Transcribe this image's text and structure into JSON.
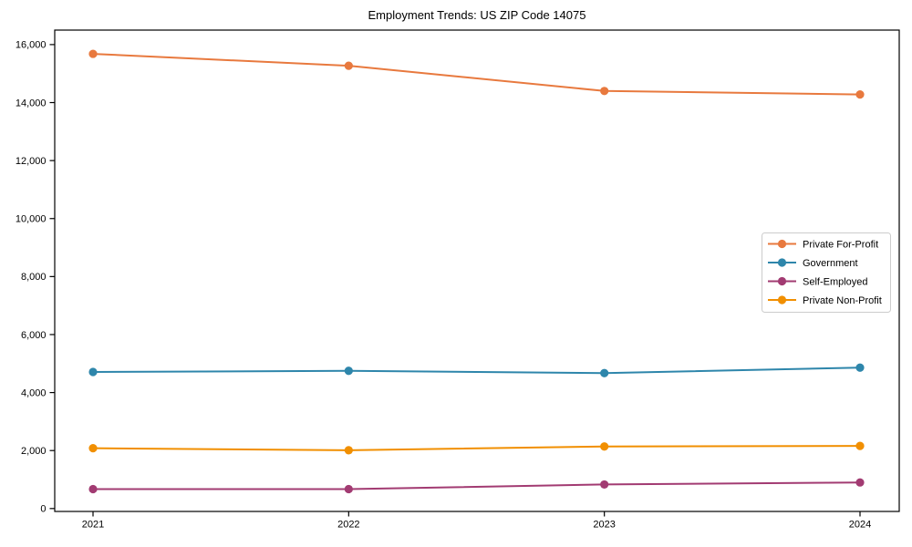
{
  "figure": {
    "title": "Employment Trends: US ZIP Code 14075",
    "background_color": "#ffffff",
    "spine_color": "#000000",
    "text_color": "#000000"
  },
  "chart_data": {
    "type": "line",
    "title": "Employment Trends: US ZIP Code 14075",
    "xlabel": "",
    "ylabel": "",
    "x": [
      2021,
      2022,
      2023,
      2024
    ],
    "x_tick_labels": [
      "2021",
      "2022",
      "2023",
      "2024"
    ],
    "y_ticks": [
      0,
      2000,
      4000,
      6000,
      8000,
      10000,
      12000,
      14000,
      16000
    ],
    "y_tick_labels": [
      "0",
      "2,000",
      "4,000",
      "6,000",
      "8,000",
      "10,000",
      "12,000",
      "14,000",
      "16,000"
    ],
    "ylim": [
      -100,
      16500
    ],
    "grid": false,
    "legend_position": "center right",
    "marker": "circle",
    "series": [
      {
        "name": "Private For-Profit",
        "color": "#E8793E",
        "values": [
          15680,
          15270,
          14400,
          14280
        ]
      },
      {
        "name": "Government",
        "color": "#2E86AB",
        "values": [
          4710,
          4750,
          4670,
          4860
        ]
      },
      {
        "name": "Self-Employed",
        "color": "#A23B72",
        "values": [
          670,
          670,
          830,
          900
        ]
      },
      {
        "name": "Private Non-Profit",
        "color": "#F18F01",
        "values": [
          2080,
          2010,
          2140,
          2160
        ]
      }
    ]
  }
}
